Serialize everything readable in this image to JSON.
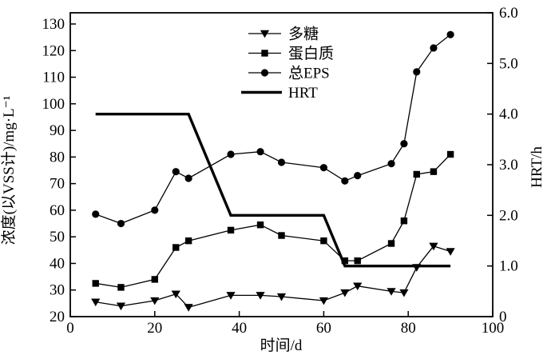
{
  "colors": {
    "line": "#000000",
    "background": "#ffffff"
  },
  "chart_data": {
    "type": "line",
    "title": "",
    "xlabel": "时间/d",
    "ylabel_left": "浓度(以VSS计)/mg·L⁻¹",
    "ylabel_right": "HRT/h",
    "xlim": [
      0,
      100
    ],
    "ylim_left": [
      20,
      130
    ],
    "ylim_right": [
      0,
      6
    ],
    "x_ticks": [
      0,
      20,
      40,
      60,
      80,
      100
    ],
    "y_ticks_left": [
      20,
      30,
      40,
      50,
      60,
      70,
      80,
      90,
      100,
      110,
      120,
      130
    ],
    "y_ticks_right": [
      "0",
      "1.0",
      "2.0",
      "3.0",
      "4.0",
      "5.0",
      "6.0"
    ],
    "grid": false,
    "legend_position": "top-center-inside",
    "x": [
      6,
      12,
      20,
      25,
      28,
      38,
      45,
      50,
      60,
      65,
      68,
      76,
      79,
      82,
      86,
      90
    ],
    "series": [
      {
        "name": "多糖",
        "marker": "triangle-down",
        "axis": "left",
        "thick": false,
        "values": [
          25.5,
          24,
          26,
          28.5,
          23.5,
          28,
          28,
          27.5,
          26,
          29,
          31.5,
          29.5,
          29,
          38.5,
          46.5,
          44.5
        ]
      },
      {
        "name": "蛋白质",
        "marker": "square",
        "axis": "left",
        "thick": false,
        "values": [
          32.5,
          31,
          34,
          46,
          48.5,
          52.5,
          54.5,
          50.5,
          48.5,
          41,
          41,
          47.5,
          56,
          73.5,
          74.5,
          81
        ]
      },
      {
        "name": "总EPS",
        "marker": "circle",
        "axis": "left",
        "thick": false,
        "values": [
          58.5,
          55,
          60,
          74.5,
          72,
          81,
          82,
          78,
          76,
          71,
          73,
          77.5,
          85,
          112,
          121,
          126
        ]
      },
      {
        "name": "HRT",
        "marker": "none",
        "axis": "right",
        "thick": true,
        "x": [
          6,
          28,
          38,
          60,
          65,
          90
        ],
        "values": [
          4,
          4,
          2,
          2,
          1,
          1
        ]
      }
    ]
  }
}
